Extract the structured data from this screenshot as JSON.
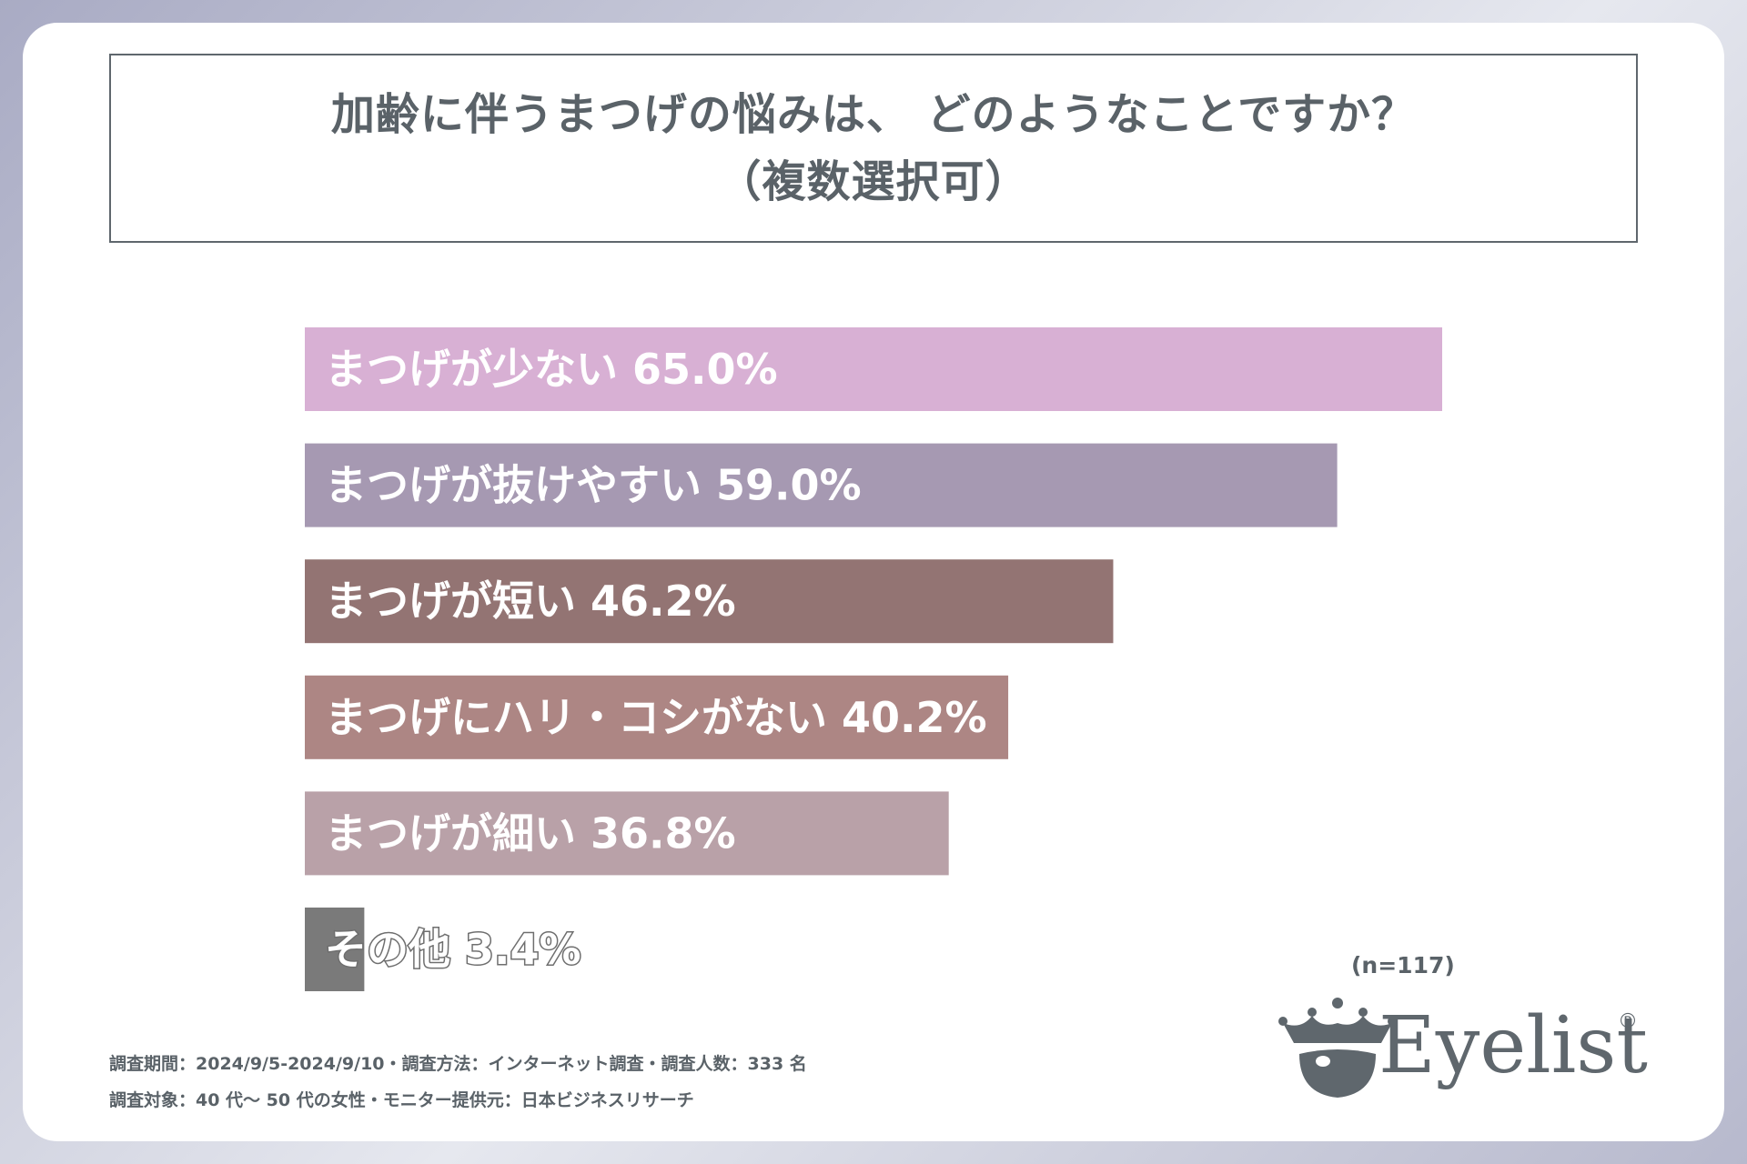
{
  "title": {
    "line1": "加齢に伴うまつげの悩みは、 どのようなことですか？",
    "line2": "（複数選択可）"
  },
  "chart_data": {
    "type": "bar",
    "orientation": "horizontal",
    "title": "加齢に伴うまつげの悩みは、 どのようなことですか？（複数選択可）",
    "xlim": [
      0,
      100
    ],
    "unit": "%",
    "categories": [
      "まつげが少ない",
      "まつげが抜けやすい",
      "まつげが短い",
      "まつげにハリ・コシがない",
      "まつげが細い",
      "その他"
    ],
    "values": [
      65.0,
      59.0,
      46.2,
      40.2,
      36.8,
      3.4
    ],
    "labels": [
      "まつげが少ない 65.0%",
      "まつげが抜けやすい 59.0%",
      "まつげが短い 46.2%",
      "まつげにハリ・コシがない 40.2%",
      "まつげが細い 36.8%",
      "その他 3.4%"
    ],
    "colors": [
      "#d8b0d4",
      "#a699b2",
      "#937473",
      "#ad8684",
      "#b9a1a8",
      "#7a7a7a"
    ],
    "n_label": "(n=117)"
  },
  "footnotes": {
    "line1": "調査期間：2024/9/5-2024/9/10・調査方法：インターネット調査・調査人数：333 名",
    "line2": "調査対象：40 代～ 50 代の女性・モニター提供元：日本ビジネスリサーチ"
  },
  "logo": {
    "text": "Eyelist",
    "mark": "®",
    "icon": "crown-eye-icon"
  }
}
